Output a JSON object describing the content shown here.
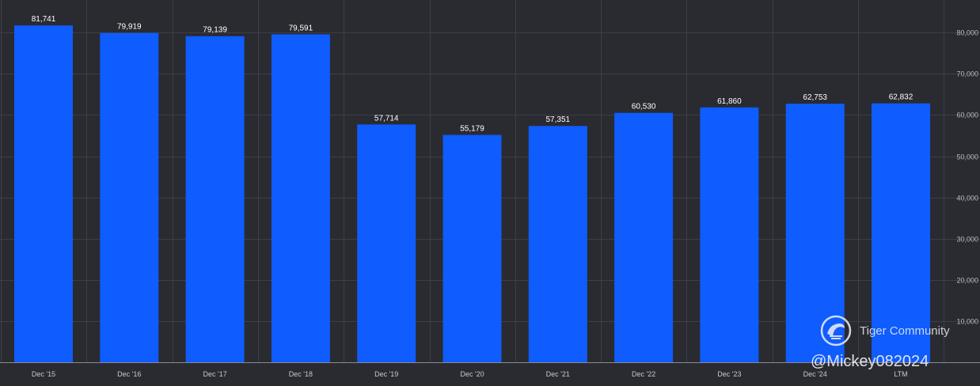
{
  "chart_data": {
    "type": "bar",
    "title": "",
    "xlabel": "",
    "ylabel": "",
    "categories": [
      "Dec '15",
      "Dec '16",
      "Dec '17",
      "Dec '18",
      "Dec '19",
      "Dec '20",
      "Dec '21",
      "Dec '22",
      "Dec '23",
      "Dec '24",
      "LTM"
    ],
    "values": [
      81741,
      79919,
      79139,
      79591,
      57714,
      55179,
      57351,
      60530,
      61860,
      62753,
      62832
    ],
    "value_labels": [
      "81,741",
      "79,919",
      "79,139",
      "79,591",
      "57,714",
      "55,179",
      "57,351",
      "60,530",
      "61,860",
      "62,753",
      "62,832"
    ],
    "ylim": [
      0,
      86000
    ],
    "y_ticks": [
      10000,
      20000,
      30000,
      40000,
      50000,
      60000,
      70000,
      80000
    ],
    "y_tick_labels": [
      "10,000",
      "20,000",
      "30,000",
      "40,000",
      "50,000",
      "60,000",
      "70,000",
      "80,000"
    ],
    "grid": true,
    "y_axis_side": "right",
    "bar_color": "#0f5cff",
    "background_color": "#2a2a31"
  },
  "watermark": {
    "community": "Tiger Community",
    "handle": "@Mickey082024",
    "logo_icon": "tiger-logo-icon"
  }
}
